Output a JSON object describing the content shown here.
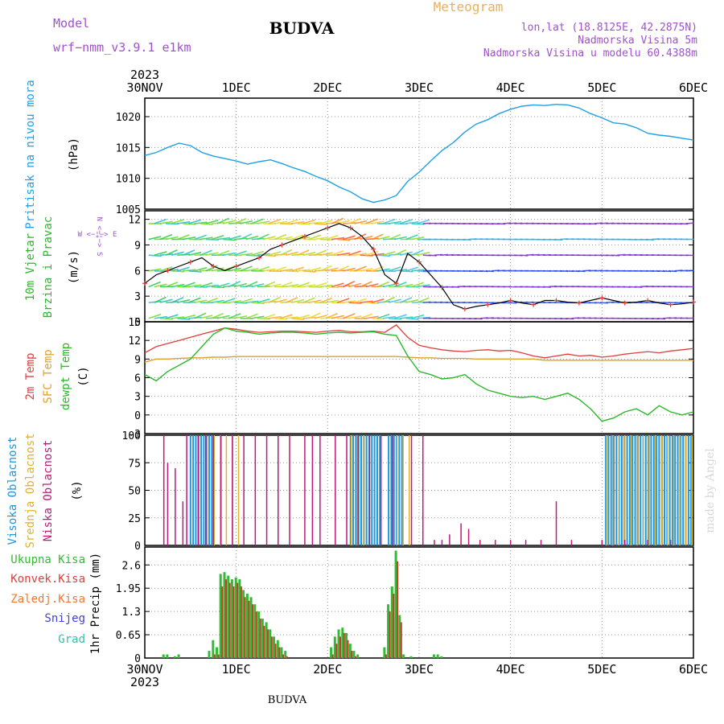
{
  "header": {
    "model_label": "Model",
    "model_name": "wrf−nmm_v3.9.1  e1km",
    "station": "BUDVA",
    "title": "Meteogram",
    "lonlat": "lon,lat (18.8125E, 42.2875N)",
    "elevation": "Nadmorska Visina 5m",
    "model_elevation": "Nadmorska Visina u modelu 60.4388m",
    "year_top": "2023",
    "year_bottom": "2023",
    "footer": "BUDVA",
    "watermark": "made by Angel"
  },
  "colors": {
    "pressure": "#1ea0e6",
    "temp2m": "#e23c3c",
    "sfc": "#e0a030",
    "dewpt": "#2ab82a",
    "low_cloud": "#c0187c",
    "mid_cloud": "#e0b030",
    "high_cloud": "#1e96e0",
    "precip_total": "#33bb33",
    "precip_conv": "#c83c2c",
    "purple_text": "#a050d0",
    "gold_text": "#e8b060"
  },
  "chart_data": [
    {
      "type": "line",
      "name": "pressure",
      "ylabel": "Pritisak na nivou mora",
      "unit": "(hPa)",
      "x_ticks": [
        "30NOV",
        "1DEC",
        "2DEC",
        "3DEC",
        "4DEC",
        "5DEC",
        "6DEC"
      ],
      "xlim": [
        0,
        144
      ],
      "ylim": [
        1005,
        1023
      ],
      "yticks": [
        1005,
        1010,
        1015,
        1020
      ],
      "x": [
        0,
        3,
        6,
        9,
        12,
        15,
        18,
        21,
        24,
        27,
        30,
        33,
        36,
        39,
        42,
        45,
        48,
        51,
        54,
        57,
        60,
        63,
        66,
        69,
        72,
        75,
        78,
        81,
        84,
        87,
        90,
        93,
        96,
        99,
        102,
        105,
        108,
        111,
        114,
        117,
        120,
        123,
        126,
        129,
        132,
        135,
        138,
        141,
        144
      ],
      "values": [
        1013.7,
        1014.2,
        1015.0,
        1015.7,
        1015.3,
        1014.2,
        1013.6,
        1013.2,
        1012.8,
        1012.3,
        1012.7,
        1013.0,
        1012.4,
        1011.7,
        1011.1,
        1010.3,
        1009.6,
        1008.6,
        1007.8,
        1006.7,
        1006.1,
        1006.5,
        1007.2,
        1009.5,
        1011.0,
        1012.8,
        1014.5,
        1015.8,
        1017.5,
        1018.8,
        1019.5,
        1020.5,
        1021.2,
        1021.7,
        1021.9,
        1021.8,
        1022.0,
        1021.9,
        1021.4,
        1020.5,
        1019.8,
        1019.0,
        1018.8,
        1018.2,
        1017.3,
        1017.0,
        1016.8,
        1016.5,
        1016.2
      ]
    },
    {
      "type": "line",
      "name": "wind",
      "ylabel_1": "10m Vjetar",
      "ylabel_2": "Brzina i Pravac",
      "unit": "(m/s)",
      "compass": "W <−¦−> E",
      "compass_ns": "N <−¦−> S",
      "xlim": [
        0,
        144
      ],
      "ylim": [
        0,
        13
      ],
      "yticks": [
        0,
        3,
        6,
        9,
        12
      ],
      "x": [
        0,
        3,
        6,
        9,
        12,
        15,
        18,
        21,
        24,
        27,
        30,
        33,
        36,
        39,
        42,
        45,
        48,
        51,
        54,
        57,
        60,
        63,
        66,
        69,
        72,
        75,
        78,
        81,
        84,
        87,
        90,
        93,
        96,
        99,
        102,
        105,
        108,
        111,
        114,
        117,
        120,
        123,
        126,
        129,
        132,
        135,
        138,
        141,
        144
      ],
      "speed": [
        4.5,
        5.5,
        6.0,
        6.5,
        7.0,
        7.5,
        6.5,
        6.0,
        6.5,
        7.0,
        7.5,
        8.5,
        9.0,
        9.5,
        10.0,
        10.5,
        11.0,
        11.5,
        11.0,
        10.0,
        8.5,
        5.5,
        4.5,
        8.0,
        7.0,
        5.5,
        4.0,
        2.0,
        1.5,
        1.8,
        2.0,
        2.2,
        2.5,
        2.2,
        2.0,
        2.5,
        2.5,
        2.3,
        2.2,
        2.5,
        2.8,
        2.5,
        2.2,
        2.3,
        2.5,
        2.2,
        2.0,
        2.1,
        2.3
      ]
    },
    {
      "type": "line",
      "name": "temperature",
      "label_2m": "2m Temp",
      "label_sfc": "SFC Temp",
      "label_dew": "dewpt Temp",
      "unit": "(C)",
      "xlim": [
        0,
        144
      ],
      "ylim": [
        -3,
        15
      ],
      "yticks": [
        -3,
        0,
        3,
        6,
        9,
        12,
        15
      ],
      "x": [
        0,
        3,
        6,
        9,
        12,
        15,
        18,
        21,
        24,
        27,
        30,
        33,
        36,
        39,
        42,
        45,
        48,
        51,
        54,
        57,
        60,
        63,
        66,
        69,
        72,
        75,
        78,
        81,
        84,
        87,
        90,
        93,
        96,
        99,
        102,
        105,
        108,
        111,
        114,
        117,
        120,
        123,
        126,
        129,
        132,
        135,
        138,
        141,
        144
      ],
      "temp2m": [
        10.0,
        11.0,
        11.5,
        12.0,
        12.5,
        13.0,
        13.5,
        14.0,
        13.8,
        13.5,
        13.3,
        13.4,
        13.5,
        13.5,
        13.4,
        13.3,
        13.5,
        13.6,
        13.4,
        13.4,
        13.5,
        13.3,
        14.5,
        12.5,
        11.2,
        10.8,
        10.5,
        10.3,
        10.2,
        10.4,
        10.5,
        10.3,
        10.4,
        10.0,
        9.5,
        9.2,
        9.5,
        9.8,
        9.5,
        9.6,
        9.3,
        9.5,
        9.8,
        10.0,
        10.2,
        10.0,
        10.3,
        10.5,
        10.7
      ],
      "sfc": [
        8.5,
        9.0,
        9.0,
        9.1,
        9.2,
        9.2,
        9.3,
        9.3,
        9.4,
        9.4,
        9.4,
        9.4,
        9.4,
        9.4,
        9.4,
        9.4,
        9.4,
        9.4,
        9.4,
        9.4,
        9.4,
        9.4,
        9.4,
        9.3,
        9.2,
        9.2,
        9.1,
        9.1,
        9.1,
        9.0,
        9.0,
        9.0,
        9.0,
        9.0,
        9.0,
        8.8,
        8.8,
        8.8,
        8.8,
        8.8,
        8.8,
        8.8,
        8.8,
        8.8,
        8.8,
        8.8,
        8.8,
        8.8,
        8.8
      ],
      "dewpt": [
        6.5,
        5.5,
        7.0,
        8.0,
        9.0,
        11.0,
        13.0,
        14.0,
        13.5,
        13.3,
        13.0,
        13.2,
        13.3,
        13.3,
        13.2,
        13.0,
        13.2,
        13.3,
        13.2,
        13.3,
        13.4,
        13.0,
        12.8,
        9.5,
        7.0,
        6.5,
        5.8,
        6.0,
        6.5,
        5.0,
        4.0,
        3.5,
        3.0,
        2.8,
        3.0,
        2.5,
        3.0,
        3.5,
        2.5,
        1.0,
        -1.0,
        -0.5,
        0.5,
        1.0,
        0.0,
        1.5,
        0.5,
        0.0,
        0.5
      ]
    },
    {
      "type": "bar",
      "name": "cloud",
      "label_high": "Visoka Oblacnost",
      "label_mid": "Srednja Oblacnost",
      "label_low": "Niska Oblacnost",
      "unit": "(%)",
      "xlim": [
        0,
        144
      ],
      "ylim": [
        0,
        100
      ],
      "yticks": [
        0,
        25,
        50,
        75,
        100
      ],
      "high_segments": [
        [
          12,
          18
        ],
        [
          54,
          62
        ],
        [
          64,
          68
        ],
        [
          121,
          144
        ]
      ],
      "mid_segments": [
        [
          18,
          26
        ],
        [
          54,
          60
        ],
        [
          66,
          70
        ],
        [
          121,
          144
        ]
      ],
      "low_x": [
        5,
        6,
        8,
        10,
        11,
        14,
        16,
        18,
        20,
        23,
        26,
        29,
        32,
        35,
        38,
        42,
        44,
        46,
        50,
        53,
        56,
        59,
        62,
        65,
        70,
        73,
        76,
        78,
        80,
        83,
        85,
        88,
        92,
        96,
        100,
        104,
        108,
        112,
        120,
        126,
        132,
        138
      ],
      "low_val": [
        100,
        75,
        70,
        40,
        100,
        100,
        100,
        100,
        100,
        100,
        100,
        100,
        100,
        100,
        100,
        100,
        100,
        100,
        100,
        100,
        100,
        100,
        100,
        100,
        100,
        100,
        5,
        5,
        10,
        20,
        15,
        5,
        5,
        5,
        5,
        5,
        40,
        5,
        5,
        5,
        5,
        5
      ]
    },
    {
      "type": "bar",
      "name": "precip",
      "label_total": "Ukupna Kisa",
      "label_conv": "Konvek.Kisa",
      "label_frz": "Zaledj.Kisa",
      "label_snow": "Snijeg",
      "label_hail": "Grad",
      "unit": "1hr Precip (mm)",
      "xlim": [
        0,
        144
      ],
      "ylim": [
        0,
        3.1
      ],
      "yticks": [
        0,
        0.65,
        1.3,
        1.95,
        2.6
      ],
      "ytick_labels": [
        "0",
        "0.65",
        "1.3",
        "1.95",
        "2.6"
      ],
      "x": [
        5,
        6,
        8,
        9,
        17,
        18,
        19,
        20,
        21,
        22,
        23,
        24,
        25,
        26,
        27,
        28,
        29,
        30,
        31,
        32,
        33,
        34,
        35,
        36,
        37,
        49,
        50,
        51,
        52,
        53,
        54,
        55,
        56,
        63,
        64,
        65,
        66,
        67,
        68,
        70,
        76,
        77,
        78
      ],
      "total": [
        0.1,
        0.1,
        0.05,
        0.1,
        0.2,
        0.5,
        0.3,
        2.35,
        2.4,
        2.3,
        2.2,
        2.25,
        2.2,
        1.9,
        1.8,
        1.7,
        1.5,
        1.3,
        1.1,
        1.0,
        0.8,
        0.6,
        0.5,
        0.3,
        0.2,
        0.3,
        0.6,
        0.8,
        0.85,
        0.7,
        0.4,
        0.2,
        0.1,
        0.3,
        1.5,
        2.0,
        3.0,
        1.2,
        0.1,
        0.05,
        0.1,
        0.1,
        0.05
      ],
      "conv": [
        0.0,
        0.0,
        0.0,
        0.0,
        0.0,
        0.1,
        0.1,
        2.0,
        2.2,
        2.1,
        2.0,
        2.1,
        2.0,
        1.7,
        1.6,
        1.5,
        1.3,
        1.1,
        0.9,
        0.8,
        0.6,
        0.4,
        0.3,
        0.1,
        0.05,
        0.1,
        0.4,
        0.6,
        0.7,
        0.5,
        0.2,
        0.05,
        0.0,
        0.1,
        1.3,
        1.8,
        2.7,
        1.0,
        0.0,
        0.0,
        0.0,
        0.0,
        0.0
      ]
    }
  ]
}
